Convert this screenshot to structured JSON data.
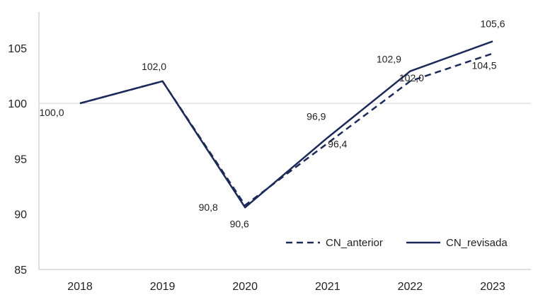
{
  "chart_data": {
    "type": "line",
    "categories": [
      "2018",
      "2019",
      "2020",
      "2021",
      "2022",
      "2023"
    ],
    "ylim": [
      85,
      108
    ],
    "yticks": [
      85,
      90,
      95,
      100,
      105
    ],
    "ytick_labels": [
      "85",
      "90",
      "95",
      "100",
      "105"
    ],
    "reference_line": 100,
    "grid": false,
    "legend_position": "bottom-right",
    "line_color": "#1b2a5b",
    "series": [
      {
        "name": "CN_anterior",
        "style": "dashed",
        "values": [
          100.0,
          102.0,
          90.8,
          96.4,
          102.0,
          104.5
        ],
        "labels": [
          "100,0",
          "",
          "90,8",
          "96,4",
          "102,0",
          "104,5"
        ]
      },
      {
        "name": "CN_revisada",
        "style": "solid",
        "values": [
          100.0,
          102.0,
          90.6,
          96.9,
          102.9,
          105.6
        ],
        "labels": [
          "",
          "102,0",
          "90,6",
          "96,9",
          "102,9",
          "105,6"
        ]
      }
    ]
  }
}
